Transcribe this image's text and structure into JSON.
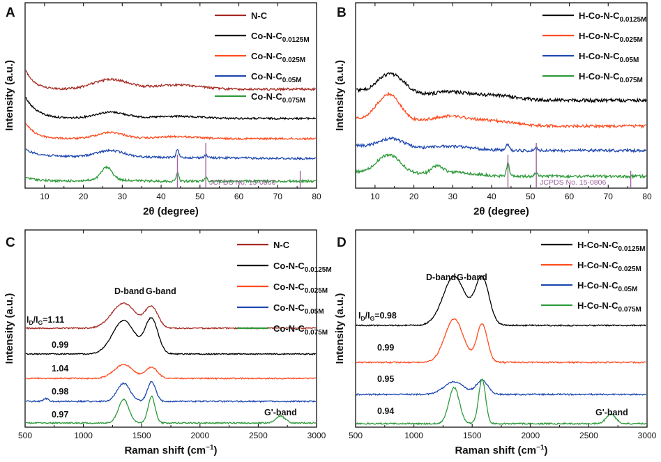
{
  "chart_data": [
    {
      "id": "A",
      "type": "line",
      "xaxis": "xrd",
      "xlabel": "2θ (degree)",
      "ylabel": "Intensity (a.u.)",
      "xlim": [
        5,
        80
      ],
      "xticks": [
        10,
        20,
        30,
        40,
        50,
        60,
        70,
        80
      ],
      "series": [
        {
          "key": "nc",
          "name_main": "N-C",
          "name_sub": "",
          "color": "#a52a22"
        },
        {
          "key": "c0125",
          "name_main": "Co-N-C",
          "name_sub": "0.0125M",
          "color": "#000000"
        },
        {
          "key": "c025",
          "name_main": "Co-N-C",
          "name_sub": "0.025M",
          "color": "#ff4b1f"
        },
        {
          "key": "c05",
          "name_main": "Co-N-C",
          "name_sub": "0.05M",
          "color": "#1f48b0"
        },
        {
          "key": "c075",
          "name_main": "Co-N-C",
          "name_sub": "0.075M",
          "color": "#2e9a3a"
        }
      ],
      "reference": {
        "label": "JCPDS No. 15-0806",
        "peaks": [
          44.2,
          51.5,
          75.8
        ],
        "color": "#a0659f"
      },
      "annotations": []
    },
    {
      "id": "B",
      "type": "line",
      "xaxis": "xrd",
      "xlabel": "2θ (degree)",
      "ylabel": "Intensity (a.u.)",
      "xlim": [
        5,
        80
      ],
      "xticks": [
        10,
        20,
        30,
        40,
        50,
        60,
        70,
        80
      ],
      "series": [
        {
          "key": "h0125",
          "name_main": "H-Co-N-C",
          "name_sub": "0.0125M",
          "color": "#000000"
        },
        {
          "key": "h025",
          "name_main": "H-Co-N-C",
          "name_sub": "0.025M",
          "color": "#ff4b1f"
        },
        {
          "key": "h05",
          "name_main": "H-Co-N-C",
          "name_sub": "0.05M",
          "color": "#1f48b0"
        },
        {
          "key": "h075",
          "name_main": "H-Co-N-C",
          "name_sub": "0.075M",
          "color": "#2e9a3a"
        }
      ],
      "reference": {
        "label": "JCPDS No. 15-0806",
        "peaks": [
          44.2,
          51.5,
          75.8
        ],
        "color": "#a0659f"
      },
      "annotations": []
    },
    {
      "id": "C",
      "type": "line",
      "xaxis": "raman",
      "xlabel": "Raman shift (cm⁻¹)",
      "ylabel": "Intensity (a.u.)",
      "xlim": [
        500,
        3000
      ],
      "xticks": [
        500,
        1000,
        1500,
        2000,
        2500,
        3000
      ],
      "series": [
        {
          "key": "nc",
          "name_main": "N-C",
          "name_sub": "",
          "color": "#a52a22",
          "ratio": "1.11"
        },
        {
          "key": "c0125",
          "name_main": "Co-N-C",
          "name_sub": "0.0125M",
          "color": "#000000",
          "ratio": "0.99"
        },
        {
          "key": "c025",
          "name_main": "Co-N-C",
          "name_sub": "0.025M",
          "color": "#ff4b1f",
          "ratio": "1.04"
        },
        {
          "key": "c05",
          "name_main": "Co-N-C",
          "name_sub": "0.05M",
          "color": "#1f48b0",
          "ratio": "0.98"
        },
        {
          "key": "c075",
          "name_main": "Co-N-C",
          "name_sub": "0.075M",
          "color": "#2e9a3a",
          "ratio": "0.97"
        }
      ],
      "ratio_prefix": "I_D/I_G=",
      "annotations": [
        "D-band",
        "G-band",
        "G'-band"
      ]
    },
    {
      "id": "D",
      "type": "line",
      "xaxis": "raman",
      "xlabel": "Raman shift (cm⁻¹)",
      "ylabel": "Intensity (a.u.)",
      "xlim": [
        500,
        3000
      ],
      "xticks": [
        500,
        1000,
        1500,
        2000,
        2500,
        3000
      ],
      "series": [
        {
          "key": "h0125",
          "name_main": "H-Co-N-C",
          "name_sub": "0.0125M",
          "color": "#000000",
          "ratio": "0.98"
        },
        {
          "key": "h025",
          "name_main": "H-Co-N-C",
          "name_sub": "0.025M",
          "color": "#ff4b1f",
          "ratio": "0.99"
        },
        {
          "key": "h05",
          "name_main": "H-Co-N-C",
          "name_sub": "0.05M",
          "color": "#1f48b0",
          "ratio": "0.95"
        },
        {
          "key": "h075",
          "name_main": "H-Co-N-C",
          "name_sub": "0.075M",
          "color": "#2e9a3a",
          "ratio": "0.94"
        }
      ],
      "ratio_prefix": "I_D/I_G=",
      "annotations": [
        "D-band",
        "G-band",
        "G'-band"
      ]
    }
  ],
  "xlabels": {
    "xrd_theta": "2θ",
    "xrd_unit": "(degree)",
    "raman_main": "Raman shift (cm",
    "raman_sup": "−1",
    "raman_close": ")"
  },
  "ratio_label": {
    "i": "I",
    "d": "D",
    "slash": "/I",
    "g": "G",
    "eq": "=1.11",
    "eq_d": "=0.98"
  }
}
